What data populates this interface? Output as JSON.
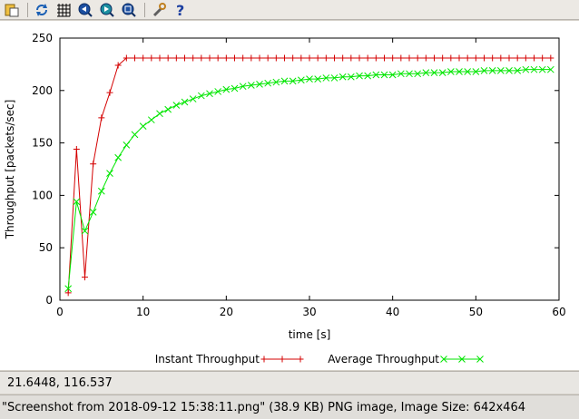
{
  "toolbar": {
    "buttons": [
      {
        "icon": "copy-to-clipboard-icon"
      },
      {
        "icon": "replot-icon"
      },
      {
        "icon": "grid-icon"
      },
      {
        "icon": "zoom-previous-icon"
      },
      {
        "icon": "zoom-next-icon"
      },
      {
        "icon": "unzoom-icon"
      },
      {
        "icon": "settings-icon"
      },
      {
        "icon": "help-icon"
      }
    ]
  },
  "coordinates": {
    "text": "21.6448,  116.537"
  },
  "status": {
    "text": "\"Screenshot from 2018-09-12 15:38:11.png\" (38.9 KB) PNG image, Image Size: 642x464"
  },
  "chart_data": {
    "type": "line",
    "title": "",
    "xlabel": "time [s]",
    "ylabel": "Throughput [packets/sec]",
    "xlim": [
      0,
      60
    ],
    "ylim": [
      0,
      250
    ],
    "xticks": [
      0,
      10,
      20,
      30,
      40,
      50,
      60
    ],
    "yticks": [
      0,
      50,
      100,
      150,
      200,
      250
    ],
    "legend_position": "bottom",
    "series": [
      {
        "name": "Instant Throughput",
        "color": "#d40000",
        "marker": "plus",
        "x": [
          1,
          2,
          3,
          4,
          5,
          6,
          7,
          8,
          9,
          10,
          11,
          12,
          13,
          14,
          15,
          16,
          17,
          18,
          19,
          20,
          21,
          22,
          23,
          24,
          25,
          26,
          27,
          28,
          29,
          30,
          31,
          32,
          33,
          34,
          35,
          36,
          37,
          38,
          39,
          40,
          41,
          42,
          43,
          44,
          45,
          46,
          47,
          48,
          49,
          50,
          51,
          52,
          53,
          54,
          55,
          56,
          57,
          58,
          59
        ],
        "y": [
          7,
          144,
          22,
          130,
          174,
          198,
          224,
          231,
          231,
          231,
          231,
          231,
          231,
          231,
          231,
          231,
          231,
          231,
          231,
          231,
          231,
          231,
          231,
          231,
          231,
          231,
          231,
          231,
          231,
          231,
          231,
          231,
          231,
          231,
          231,
          231,
          231,
          231,
          231,
          231,
          231,
          231,
          231,
          231,
          231,
          231,
          231,
          231,
          231,
          231,
          231,
          231,
          231,
          231,
          231,
          231,
          231,
          231,
          231
        ]
      },
      {
        "name": "Average Throughput",
        "color": "#00e600",
        "marker": "cross",
        "x": [
          1,
          2,
          3,
          4,
          5,
          6,
          7,
          8,
          9,
          10,
          11,
          12,
          13,
          14,
          15,
          16,
          17,
          18,
          19,
          20,
          21,
          22,
          23,
          24,
          25,
          26,
          27,
          28,
          29,
          30,
          31,
          32,
          33,
          34,
          35,
          36,
          37,
          38,
          39,
          40,
          41,
          42,
          43,
          44,
          45,
          46,
          47,
          48,
          49,
          50,
          51,
          52,
          53,
          54,
          55,
          56,
          57,
          58,
          59
        ],
        "y": [
          11,
          94,
          66,
          84,
          104,
          121,
          136,
          148,
          158,
          166,
          172,
          178,
          182,
          186,
          189,
          192,
          195,
          197,
          199,
          201,
          202,
          204,
          205,
          206,
          207,
          208,
          209,
          209,
          210,
          211,
          211,
          212,
          212,
          213,
          213,
          214,
          214,
          215,
          215,
          215,
          216,
          216,
          216,
          217,
          217,
          217,
          218,
          218,
          218,
          218,
          219,
          219,
          219,
          219,
          219,
          220,
          220,
          220,
          220
        ]
      }
    ]
  }
}
